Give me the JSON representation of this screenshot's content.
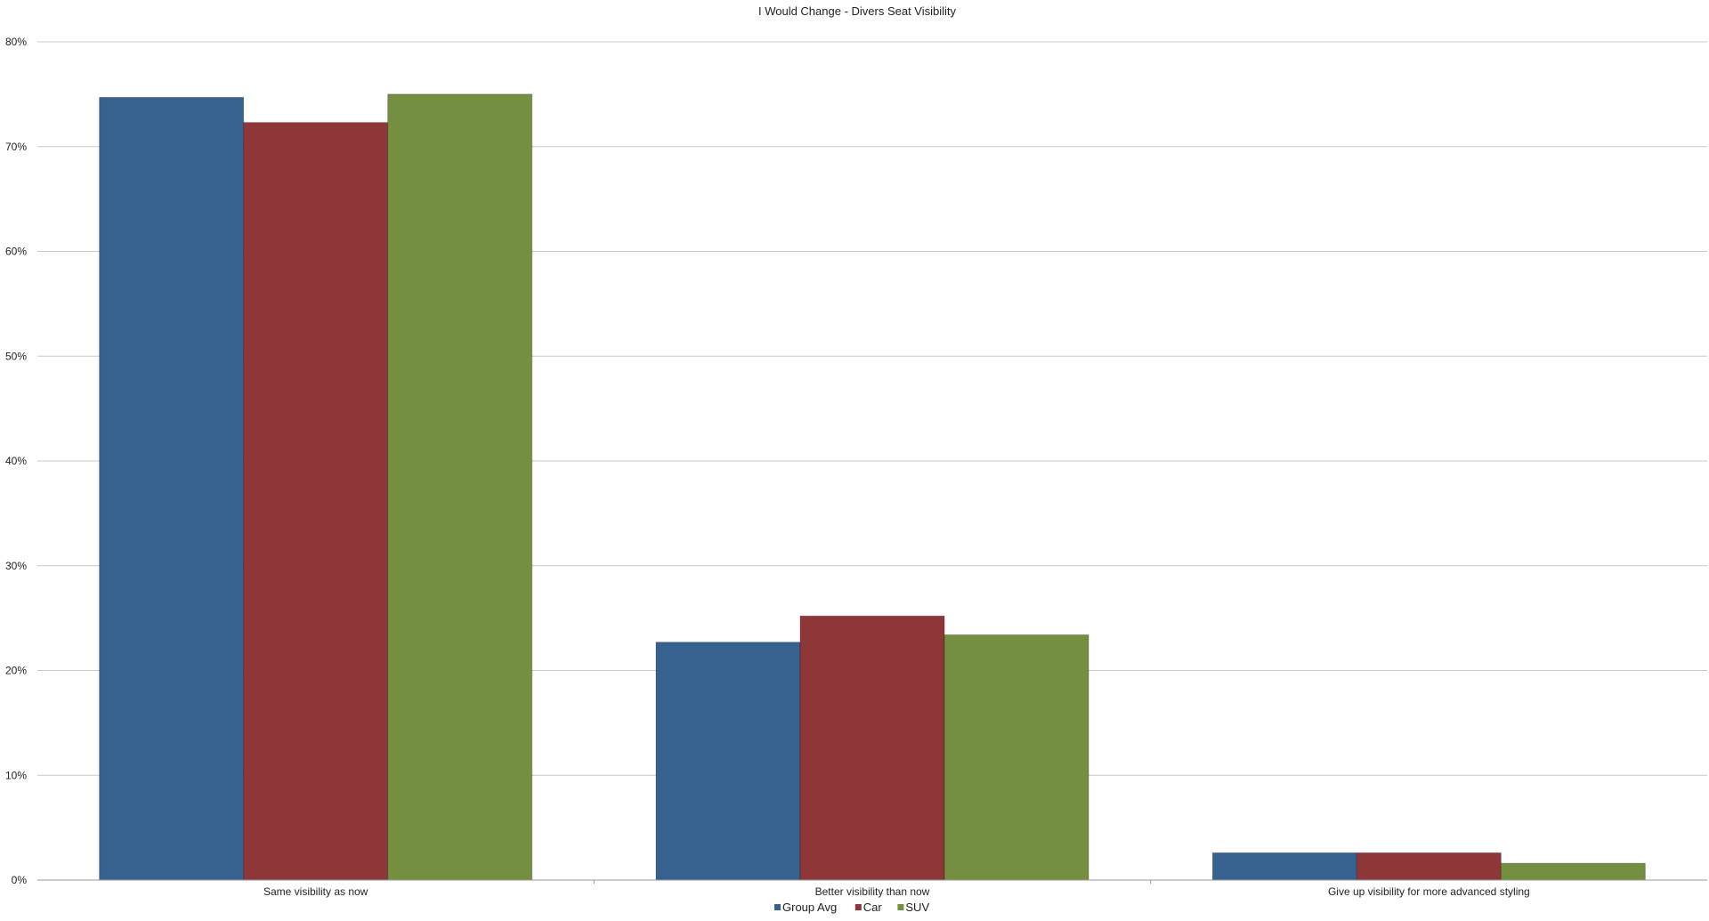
{
  "chart_data": {
    "type": "bar",
    "title": "I Would Change - Divers Seat Visibility",
    "xlabel": "",
    "ylabel": "",
    "ylim": [
      0,
      0.8
    ],
    "yticks": [
      "0%",
      "10%",
      "20%",
      "30%",
      "40%",
      "50%",
      "60%",
      "70%",
      "80%"
    ],
    "grid": true,
    "legend_position": "bottom",
    "categories": [
      "Same visibility as now",
      "Better visibility than now",
      "Give up visibility for more advanced styling"
    ],
    "series": [
      {
        "name": "Group Avg",
        "color": "#37628f",
        "values": [
          0.747,
          0.227,
          0.026
        ]
      },
      {
        "name": "Car",
        "color": "#8f3738",
        "values": [
          0.723,
          0.252,
          0.026
        ]
      },
      {
        "name": "SUV",
        "color": "#758f40",
        "values": [
          0.75,
          0.234,
          0.016
        ]
      }
    ]
  }
}
